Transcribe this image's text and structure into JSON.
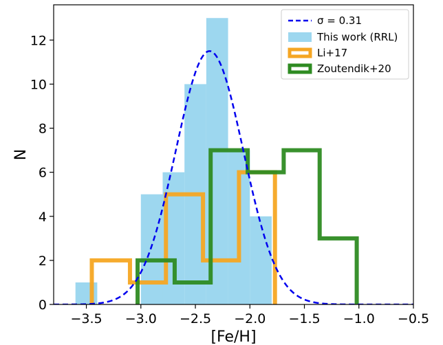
{
  "chart_data": {
    "type": "histogram",
    "xlabel": "[Fe/H]",
    "ylabel": "N",
    "xlim": [
      -3.8,
      -0.5
    ],
    "ylim": [
      0,
      13.6
    ],
    "xticks": [
      -3.5,
      -3.0,
      -2.5,
      -2.0,
      -1.5,
      -1.0,
      -0.5
    ],
    "xtick_labels": [
      "−3.5",
      "−3.0",
      "−2.5",
      "−2.0",
      "−1.5",
      "−1.0",
      "−0.5"
    ],
    "yticks": [
      0,
      2,
      4,
      6,
      8,
      10,
      12
    ],
    "ytick_labels": [
      "0",
      "2",
      "4",
      "6",
      "8",
      "10",
      "12"
    ],
    "legend_position": "top-right",
    "gaussian": {
      "legend_label": "σ = 0.31",
      "mu": -2.37,
      "sigma": 0.31,
      "amplitude": 11.5,
      "color": "#0000ee",
      "style": "dashed"
    },
    "histograms": [
      {
        "name": "This work (RRL)",
        "style": "filled",
        "color": "#87ceeb",
        "edges": [
          -3.6,
          -3.4,
          -3.2,
          -3.0,
          -2.8,
          -2.6,
          -2.4,
          -2.2,
          -2.0,
          -1.8
        ],
        "counts": [
          1,
          0,
          0,
          5,
          6,
          10,
          13,
          7,
          4
        ]
      },
      {
        "name": "Li+17",
        "style": "step",
        "color": "#f5a623",
        "edges": [
          -3.45,
          -3.1,
          -2.77,
          -2.43,
          -2.1,
          -1.77
        ],
        "counts": [
          2,
          1,
          5,
          2,
          6
        ]
      },
      {
        "name": "Zoutendik+20",
        "style": "step",
        "color": "#2e8b22",
        "edges": [
          -3.03,
          -2.69,
          -2.36,
          -2.02,
          -1.69,
          -1.36,
          -1.02
        ],
        "counts": [
          2,
          1,
          7,
          6,
          7,
          3
        ]
      }
    ]
  }
}
